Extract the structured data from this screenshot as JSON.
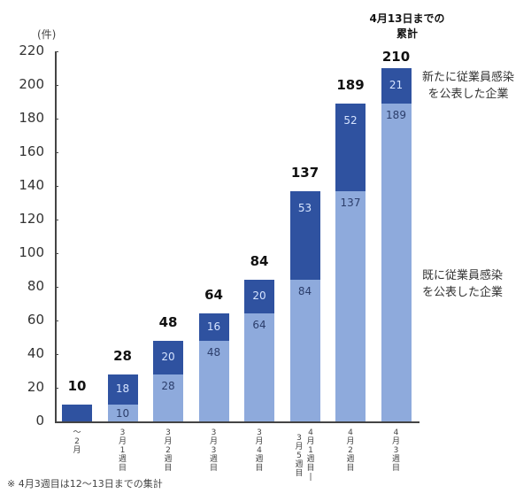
{
  "chart_data": {
    "type": "bar",
    "stacked": true,
    "title": "",
    "ylabel": "(件)",
    "xlabel": "",
    "ylim": [
      0,
      220
    ],
    "yticks": [
      0,
      20,
      40,
      60,
      80,
      100,
      120,
      140,
      160,
      180,
      200,
      220
    ],
    "categories": [
      "~2月",
      "3月1週目",
      "3月2週目",
      "3月3週目",
      "3月4週目",
      "3月5週目・4月1週目",
      "4月2週目",
      "4月3週目"
    ],
    "series": [
      {
        "name": "既に従業員感染を公表した企業",
        "color": "#8eaadc",
        "values": [
          0,
          10,
          28,
          48,
          64,
          84,
          137,
          189
        ]
      },
      {
        "name": "新たに従業員感染を公表した企業",
        "color": "#2f52a0",
        "values": [
          10,
          18,
          20,
          16,
          20,
          53,
          52,
          21
        ]
      }
    ],
    "totals": [
      10,
      28,
      48,
      64,
      84,
      137,
      189,
      210
    ],
    "annotations": [
      "4月13日までの累計"
    ],
    "footnote": "※ 4月3週目は12～13日までの集計",
    "grid": false,
    "legend_position": "right (inline labels)"
  },
  "axis": {
    "unit": "(件)",
    "ticks": [
      "220",
      "200",
      "180",
      "160",
      "140",
      "120",
      "100",
      "80",
      "60",
      "40",
      "20",
      "0"
    ]
  },
  "bars": [
    {
      "cat_lines": [
        "～",
        "2",
        "月"
      ],
      "light": "",
      "dark": "",
      "total": "10"
    },
    {
      "cat_lines": [
        "3",
        "月",
        "1",
        "週",
        "目"
      ],
      "light": "10",
      "dark": "18",
      "total": "28"
    },
    {
      "cat_lines": [
        "3",
        "月",
        "2",
        "週",
        "目"
      ],
      "light": "28",
      "dark": "20",
      "total": "48"
    },
    {
      "cat_lines": [
        "3",
        "月",
        "3",
        "週",
        "目"
      ],
      "light": "48",
      "dark": "16",
      "total": "64"
    },
    {
      "cat_lines": [
        "3",
        "月",
        "4",
        "週",
        "目"
      ],
      "light": "64",
      "dark": "20",
      "total": "84"
    },
    {
      "cat_lines": [
        "3",
        "月",
        "5",
        "週",
        "目",
        "4",
        "月",
        "1",
        "週",
        "目"
      ],
      "light": "84",
      "dark": "53",
      "total": "137"
    },
    {
      "cat_lines": [
        "4",
        "月",
        "2",
        "週",
        "目"
      ],
      "light": "137",
      "dark": "52",
      "total": "189"
    },
    {
      "cat_lines": [
        "4",
        "月",
        "3",
        "週",
        "目"
      ],
      "light": "189",
      "dark": "21",
      "total": "210"
    }
  ],
  "annotation": {
    "line1": "4月13日までの",
    "line2": "累計"
  },
  "legend": {
    "new_line1": "新たに従業員感染",
    "new_line2": "を公表した企業",
    "existing_line1": "既に従業員感染",
    "existing_line2": "を公表した企業"
  },
  "footnote": "※ 4月3週目は12～13日までの集計"
}
